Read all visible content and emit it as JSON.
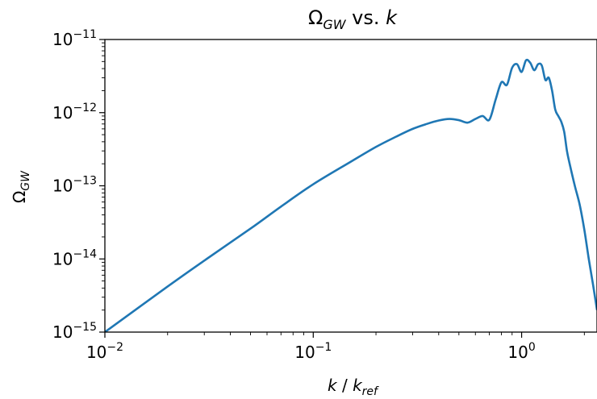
{
  "chart_data": {
    "type": "line",
    "title": {
      "main": "Ω",
      "sub": "GW",
      "suffix": " vs. ",
      "var": "k"
    },
    "xlabel": {
      "var": "k",
      "sep": " / ",
      "var2": "k",
      "sub": "ref"
    },
    "ylabel": {
      "main": "Ω",
      "sub": "GW"
    },
    "xscale": "log",
    "yscale": "log",
    "xlim": [
      0.01,
      2.3
    ],
    "ylim": [
      1e-15,
      1e-11
    ],
    "x_ticks": [
      {
        "value": 0.01,
        "base": "10",
        "exp": "−2"
      },
      {
        "value": 0.1,
        "base": "10",
        "exp": "−1"
      },
      {
        "value": 1,
        "base": "10",
        "exp": "0"
      }
    ],
    "y_ticks": [
      {
        "value": 1e-15,
        "base": "10",
        "exp": "−15"
      },
      {
        "value": 1e-14,
        "base": "10",
        "exp": "−14"
      },
      {
        "value": 1e-13,
        "base": "10",
        "exp": "−13"
      },
      {
        "value": 1e-12,
        "base": "10",
        "exp": "−12"
      },
      {
        "value": 1e-11,
        "base": "10",
        "exp": "−11"
      }
    ],
    "grid": false,
    "series": [
      {
        "color": "#1f77b4",
        "points": [
          [
            0.01,
            1e-15
          ],
          [
            0.02,
            4.2e-15
          ],
          [
            0.03,
            9.5e-15
          ],
          [
            0.05,
            2.6e-14
          ],
          [
            0.07,
            5.2e-14
          ],
          [
            0.1,
            1.05e-13
          ],
          [
            0.15,
            2.1e-13
          ],
          [
            0.2,
            3.4e-13
          ],
          [
            0.25,
            4.7e-13
          ],
          [
            0.3,
            6e-13
          ],
          [
            0.35,
            7e-13
          ],
          [
            0.4,
            7.8e-13
          ],
          [
            0.45,
            8.2e-13
          ],
          [
            0.5,
            7.9e-13
          ],
          [
            0.55,
            7.3e-13
          ],
          [
            0.6,
            8.2e-13
          ],
          [
            0.65,
            9e-13
          ],
          [
            0.7,
            8e-13
          ],
          [
            0.75,
            1.5e-12
          ],
          [
            0.8,
            2.6e-12
          ],
          [
            0.85,
            2.4e-12
          ],
          [
            0.9,
            4.1e-12
          ],
          [
            0.95,
            4.6e-12
          ],
          [
            1.0,
            3.6e-12
          ],
          [
            1.05,
            5.2e-12
          ],
          [
            1.1,
            4.8e-12
          ],
          [
            1.15,
            3.8e-12
          ],
          [
            1.2,
            4.6e-12
          ],
          [
            1.25,
            4.4e-12
          ],
          [
            1.3,
            2.8e-12
          ],
          [
            1.35,
            3e-12
          ],
          [
            1.4,
            2e-12
          ],
          [
            1.45,
            1.1e-12
          ],
          [
            1.5,
            9e-13
          ],
          [
            1.55,
            7.5e-13
          ],
          [
            1.6,
            5.5e-13
          ],
          [
            1.65,
            3e-13
          ],
          [
            1.7,
            2e-13
          ],
          [
            1.8,
            1e-13
          ],
          [
            1.9,
            5.5e-14
          ],
          [
            2.0,
            2.5e-14
          ],
          [
            2.1,
            1e-14
          ],
          [
            2.2,
            4.5e-15
          ],
          [
            2.3,
            2e-15
          ]
        ]
      }
    ]
  }
}
